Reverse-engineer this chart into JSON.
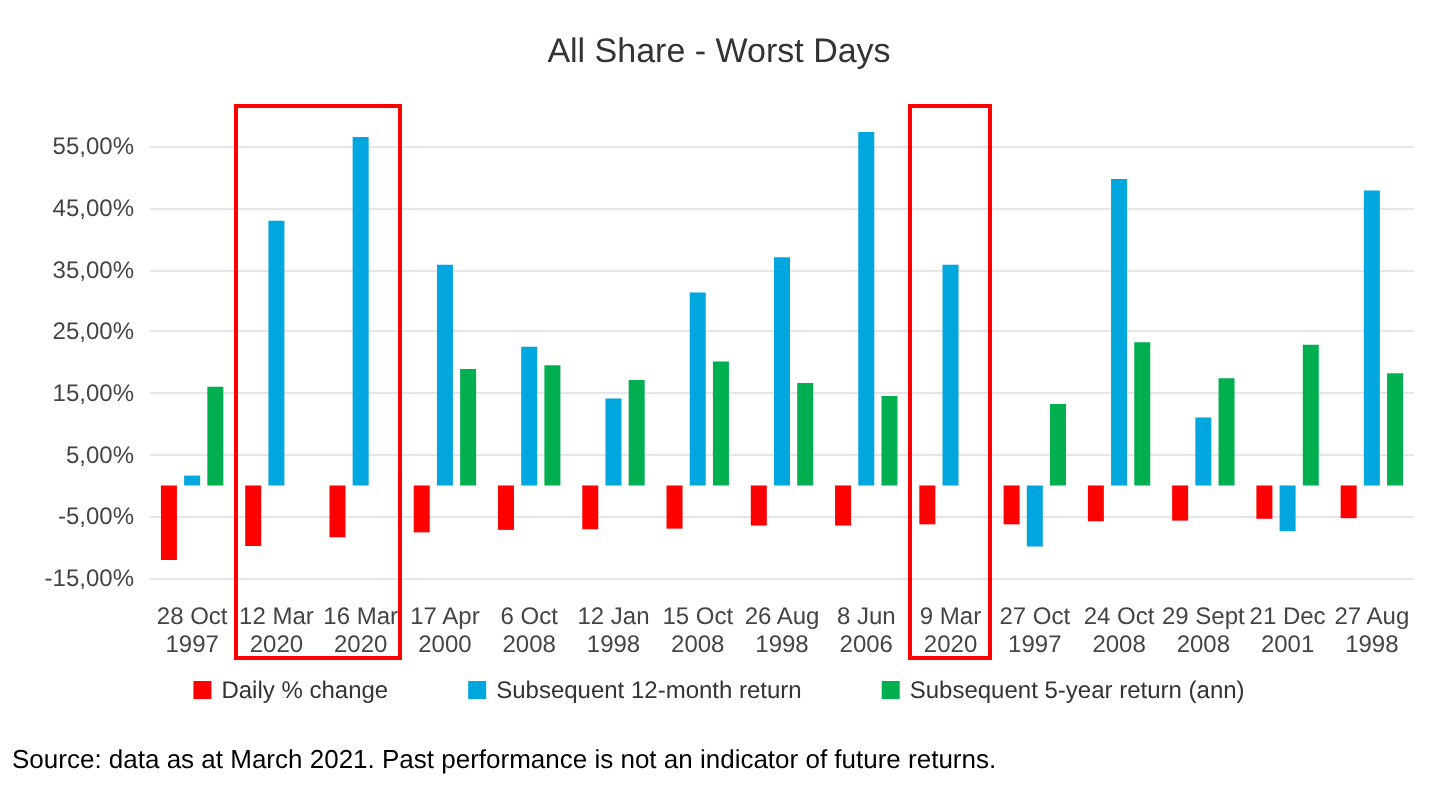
{
  "chart_data": {
    "type": "bar",
    "title": "All Share - Worst Days",
    "categories": [
      "28 Oct 1997",
      "12 Mar 2020",
      "16 Mar 2020",
      "17 Apr 2000",
      "6 Oct 2008",
      "12 Jan 1998",
      "15 Oct 2008",
      "26 Aug 1998",
      "8 Jun 2006",
      "9 Mar 2020",
      "27 Oct 1997",
      "24 Oct 2008",
      "29 Sept 2008",
      "21 Dec 2001",
      "27 Aug 1998"
    ],
    "series": [
      {
        "name": "Daily % change",
        "color": "#ff0000",
        "values": [
          -12.1,
          -9.8,
          -8.4,
          -7.6,
          -7.2,
          -7.1,
          -7.0,
          -6.5,
          -6.5,
          -6.3,
          -6.3,
          -5.8,
          -5.7,
          -5.4,
          -5.3
        ]
      },
      {
        "name": "Subsequent 12-month return",
        "color": "#00a6de",
        "values": [
          1.6,
          42.9,
          56.5,
          35.8,
          22.5,
          14.1,
          31.3,
          37.0,
          57.3,
          35.8,
          -9.9,
          49.7,
          11.0,
          -7.4,
          47.8
        ]
      },
      {
        "name": "Subsequent 5-year return (ann)",
        "color": "#00b050",
        "values": [
          16.0,
          null,
          null,
          18.9,
          19.5,
          17.1,
          20.1,
          16.6,
          14.5,
          null,
          13.2,
          23.2,
          17.4,
          22.8,
          18.2
        ]
      }
    ],
    "yticks": [
      {
        "value": -15,
        "label": "-15,00%"
      },
      {
        "value": -5,
        "label": "-5,00%"
      },
      {
        "value": 5,
        "label": "5,00%"
      },
      {
        "value": 15,
        "label": "15,00%"
      },
      {
        "value": 25,
        "label": "25,00%"
      },
      {
        "value": 35,
        "label": "35,00%"
      },
      {
        "value": 45,
        "label": "45,00%"
      },
      {
        "value": 55,
        "label": "55,00%"
      }
    ],
    "ylim": [
      -15,
      57.3
    ],
    "grid": "y",
    "legend": "bottom",
    "annotations": [
      "Source: data as at March 2021. Past performance is not an indicator of future returns."
    ]
  }
}
